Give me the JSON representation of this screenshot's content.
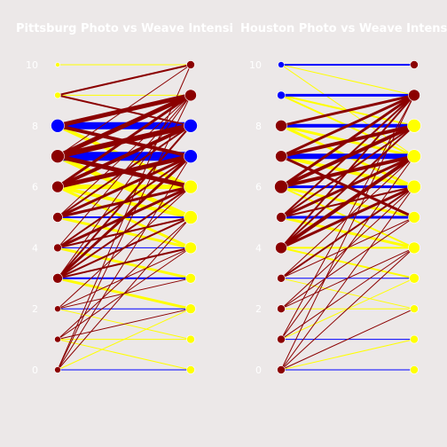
{
  "chart_data": [
    {
      "type": "line",
      "title": "Pittsburg Photo vs Weave Intensi",
      "ylim": [
        0,
        10
      ],
      "yticks": [
        0,
        2,
        4,
        6,
        8,
        10
      ],
      "grid": false,
      "colors": {
        "photo": "#0000ff",
        "weave": "#8b0000",
        "mixed": "#ffff00",
        "background": "#ece8e8"
      },
      "levels": [
        {
          "y": 10,
          "size": 1,
          "pointColor": "yellow",
          "flow": "mixed",
          "width": 1
        },
        {
          "y": 9,
          "size": 2,
          "pointColor": "yellow",
          "flow": "mixed",
          "width": 1
        },
        {
          "y": 8,
          "size": 6,
          "pointColor": "blue",
          "flow": "blue",
          "width": 8
        },
        {
          "y": 7,
          "size": 6,
          "pointColor": "darkred",
          "flow": "blue",
          "width": 10
        },
        {
          "y": 6,
          "size": 5,
          "pointColor": "darkred",
          "flow": "mixed",
          "width": 5
        },
        {
          "y": 5,
          "size": 4,
          "pointColor": "darkred",
          "flow": "blue",
          "width": 2
        },
        {
          "y": 4,
          "size": 3,
          "pointColor": "darkred",
          "flow": "blue",
          "width": 1
        },
        {
          "y": 3,
          "size": 4,
          "pointColor": "darkred",
          "flow": "blue",
          "width": 2
        },
        {
          "y": 2,
          "size": 2,
          "pointColor": "darkred",
          "flow": "blue",
          "width": 1
        },
        {
          "y": 1,
          "size": 2,
          "pointColor": "darkred",
          "flow": "mixed",
          "width": 1
        },
        {
          "y": 0,
          "size": 2,
          "pointColor": "darkred",
          "flow": "blue",
          "width": 1
        }
      ],
      "crosses": [
        {
          "from": 9,
          "to": 10,
          "color": "darkred",
          "width": 2
        },
        {
          "from": 9,
          "to": 8,
          "color": "darkred",
          "width": 2
        },
        {
          "from": 8,
          "to": 9,
          "color": "darkred",
          "width": 5
        },
        {
          "from": 8,
          "to": 7,
          "color": "darkred",
          "width": 4
        },
        {
          "from": 8,
          "to": 6,
          "color": "yellow",
          "width": 4
        },
        {
          "from": 7,
          "to": 9,
          "color": "darkred",
          "width": 5
        },
        {
          "from": 7,
          "to": 8,
          "color": "darkred",
          "width": 6
        },
        {
          "from": 7,
          "to": 6,
          "color": "darkred",
          "width": 5
        },
        {
          "from": 7,
          "to": 5,
          "color": "yellow",
          "width": 5
        },
        {
          "from": 7,
          "to": 10,
          "color": "darkred",
          "width": 1
        },
        {
          "from": 6,
          "to": 8,
          "color": "darkred",
          "width": 4
        },
        {
          "from": 6,
          "to": 7,
          "color": "darkred",
          "width": 5
        },
        {
          "from": 6,
          "to": 5,
          "color": "yellow",
          "width": 4
        },
        {
          "from": 6,
          "to": 9,
          "color": "darkred",
          "width": 3
        },
        {
          "from": 6,
          "to": 4,
          "color": "yellow",
          "width": 3
        },
        {
          "from": 5,
          "to": 7,
          "color": "darkred",
          "width": 3
        },
        {
          "from": 5,
          "to": 6,
          "color": "darkred",
          "width": 3
        },
        {
          "from": 5,
          "to": 8,
          "color": "darkred",
          "width": 2
        },
        {
          "from": 5,
          "to": 4,
          "color": "yellow",
          "width": 3
        },
        {
          "from": 5,
          "to": 9,
          "color": "darkred",
          "width": 1
        },
        {
          "from": 4,
          "to": 6,
          "color": "darkred",
          "width": 3
        },
        {
          "from": 4,
          "to": 7,
          "color": "darkred",
          "width": 2
        },
        {
          "from": 4,
          "to": 5,
          "color": "darkred",
          "width": 2
        },
        {
          "from": 4,
          "to": 3,
          "color": "yellow",
          "width": 3
        },
        {
          "from": 4,
          "to": 9,
          "color": "darkred",
          "width": 1
        },
        {
          "from": 3,
          "to": 7,
          "color": "darkred",
          "width": 3
        },
        {
          "from": 3,
          "to": 6,
          "color": "darkred",
          "width": 2
        },
        {
          "from": 3,
          "to": 8,
          "color": "darkred",
          "width": 2
        },
        {
          "from": 3,
          "to": 5,
          "color": "darkred",
          "width": 2
        },
        {
          "from": 3,
          "to": 4,
          "color": "darkred",
          "width": 2
        },
        {
          "from": 3,
          "to": 9,
          "color": "darkred",
          "width": 1
        },
        {
          "from": 3,
          "to": 2,
          "color": "yellow",
          "width": 3
        },
        {
          "from": 2,
          "to": 6,
          "color": "darkred",
          "width": 1
        },
        {
          "from": 2,
          "to": 4,
          "color": "darkred",
          "width": 1
        },
        {
          "from": 2,
          "to": 3,
          "color": "darkred",
          "width": 1
        },
        {
          "from": 2,
          "to": 1,
          "color": "yellow",
          "width": 1
        },
        {
          "from": 1,
          "to": 4,
          "color": "darkred",
          "width": 1
        },
        {
          "from": 1,
          "to": 2,
          "color": "darkred",
          "width": 1
        },
        {
          "from": 1,
          "to": 5,
          "color": "darkred",
          "width": 1
        },
        {
          "from": 0,
          "to": 10,
          "color": "darkred",
          "width": 1
        },
        {
          "from": 0,
          "to": 9,
          "color": "darkred",
          "width": 1
        },
        {
          "from": 0,
          "to": 7,
          "color": "darkred",
          "width": 1
        },
        {
          "from": 0,
          "to": 5,
          "color": "darkred",
          "width": 1
        },
        {
          "from": 0,
          "to": 2,
          "color": "yellow",
          "width": 1
        },
        {
          "from": 1,
          "to": 0,
          "color": "yellow",
          "width": 1
        }
      ],
      "right_points": [
        {
          "y": 10,
          "size": 3,
          "color": "darkred"
        },
        {
          "y": 9,
          "size": 5,
          "color": "darkred"
        },
        {
          "y": 8,
          "size": 6,
          "color": "blue"
        },
        {
          "y": 7,
          "size": 6,
          "color": "blue"
        },
        {
          "y": 6,
          "size": 6,
          "color": "yellow"
        },
        {
          "y": 5,
          "size": 6,
          "color": "yellow"
        },
        {
          "y": 4,
          "size": 5,
          "color": "yellow"
        },
        {
          "y": 3,
          "size": 4,
          "color": "yellow"
        },
        {
          "y": 2,
          "size": 4,
          "color": "yellow"
        },
        {
          "y": 1,
          "size": 3,
          "color": "yellow"
        },
        {
          "y": 0,
          "size": 3,
          "color": "yellow"
        }
      ]
    },
    {
      "type": "line",
      "title": "Houston Photo vs Weave Intensit",
      "ylim": [
        0,
        10
      ],
      "yticks": [
        0,
        2,
        4,
        6,
        8,
        10
      ],
      "grid": false,
      "colors": {
        "photo": "#0000ff",
        "weave": "#8b0000",
        "mixed": "#ffff00",
        "background": "#ece8e8"
      },
      "levels": [
        {
          "y": 10,
          "size": 2,
          "pointColor": "blue",
          "flow": "blue",
          "width": 2
        },
        {
          "y": 9,
          "size": 3,
          "pointColor": "blue",
          "flow": "blue",
          "width": 3
        },
        {
          "y": 8,
          "size": 5,
          "pointColor": "darkred",
          "flow": "blue",
          "width": 4
        },
        {
          "y": 7,
          "size": 5,
          "pointColor": "darkred",
          "flow": "blue",
          "width": 6
        },
        {
          "y": 6,
          "size": 6,
          "pointColor": "darkred",
          "flow": "blue",
          "width": 3
        },
        {
          "y": 5,
          "size": 4,
          "pointColor": "darkred",
          "flow": "blue",
          "width": 3
        },
        {
          "y": 4,
          "size": 5,
          "pointColor": "darkred",
          "flow": "mixed",
          "width": 2
        },
        {
          "y": 3,
          "size": 3,
          "pointColor": "darkred",
          "flow": "blue",
          "width": 1
        },
        {
          "y": 2,
          "size": 3,
          "pointColor": "darkred",
          "flow": "mixed",
          "width": 1
        },
        {
          "y": 1,
          "size": 3,
          "pointColor": "darkred",
          "flow": "blue",
          "width": 1
        },
        {
          "y": 0,
          "size": 3,
          "pointColor": "darkred",
          "flow": "blue",
          "width": 1
        }
      ],
      "crosses": [
        {
          "from": 10,
          "to": 9,
          "color": "yellow",
          "width": 1
        },
        {
          "from": 10,
          "to": 7,
          "color": "yellow",
          "width": 1
        },
        {
          "from": 9,
          "to": 8,
          "color": "yellow",
          "width": 2
        },
        {
          "from": 9,
          "to": 7,
          "color": "yellow",
          "width": 2
        },
        {
          "from": 8,
          "to": 9,
          "color": "darkred",
          "width": 3
        },
        {
          "from": 8,
          "to": 7,
          "color": "yellow",
          "width": 3
        },
        {
          "from": 8,
          "to": 6,
          "color": "yellow",
          "width": 3
        },
        {
          "from": 7,
          "to": 9,
          "color": "darkred",
          "width": 3
        },
        {
          "from": 7,
          "to": 8,
          "color": "darkred",
          "width": 4
        },
        {
          "from": 7,
          "to": 6,
          "color": "yellow",
          "width": 4
        },
        {
          "from": 7,
          "to": 5,
          "color": "darkred",
          "width": 3
        },
        {
          "from": 6,
          "to": 8,
          "color": "darkred",
          "width": 4
        },
        {
          "from": 6,
          "to": 7,
          "color": "darkred",
          "width": 4
        },
        {
          "from": 6,
          "to": 9,
          "color": "darkred",
          "width": 3
        },
        {
          "from": 6,
          "to": 5,
          "color": "yellow",
          "width": 3
        },
        {
          "from": 6,
          "to": 4,
          "color": "yellow",
          "width": 2
        },
        {
          "from": 5,
          "to": 7,
          "color": "darkred",
          "width": 3
        },
        {
          "from": 5,
          "to": 8,
          "color": "darkred",
          "width": 2
        },
        {
          "from": 5,
          "to": 6,
          "color": "darkred",
          "width": 2
        },
        {
          "from": 5,
          "to": 4,
          "color": "yellow",
          "width": 3
        },
        {
          "from": 5,
          "to": 9,
          "color": "darkred",
          "width": 2
        },
        {
          "from": 4,
          "to": 7,
          "color": "darkred",
          "width": 4
        },
        {
          "from": 4,
          "to": 6,
          "color": "darkred",
          "width": 3
        },
        {
          "from": 4,
          "to": 8,
          "color": "darkred",
          "width": 2
        },
        {
          "from": 4,
          "to": 9,
          "color": "darkred",
          "width": 2
        },
        {
          "from": 4,
          "to": 3,
          "color": "yellow",
          "width": 2
        },
        {
          "from": 3,
          "to": 6,
          "color": "darkred",
          "width": 2
        },
        {
          "from": 3,
          "to": 5,
          "color": "darkred",
          "width": 1
        },
        {
          "from": 3,
          "to": 7,
          "color": "darkred",
          "width": 1
        },
        {
          "from": 3,
          "to": 2,
          "color": "yellow",
          "width": 1
        },
        {
          "from": 2,
          "to": 5,
          "color": "darkred",
          "width": 1
        },
        {
          "from": 2,
          "to": 6,
          "color": "darkred",
          "width": 1
        },
        {
          "from": 2,
          "to": 4,
          "color": "darkred",
          "width": 1
        },
        {
          "from": 1,
          "to": 9,
          "color": "darkred",
          "width": 1
        },
        {
          "from": 1,
          "to": 7,
          "color": "darkred",
          "width": 1
        },
        {
          "from": 1,
          "to": 4,
          "color": "darkred",
          "width": 1
        },
        {
          "from": 1,
          "to": 3,
          "color": "yellow",
          "width": 1
        },
        {
          "from": 0,
          "to": 9,
          "color": "darkred",
          "width": 1
        },
        {
          "from": 0,
          "to": 6,
          "color": "darkred",
          "width": 1
        },
        {
          "from": 0,
          "to": 4,
          "color": "darkred",
          "width": 1
        },
        {
          "from": 0,
          "to": 2,
          "color": "darkred",
          "width": 1
        },
        {
          "from": 0,
          "to": 1,
          "color": "yellow",
          "width": 1
        }
      ],
      "right_points": [
        {
          "y": 10,
          "size": 3,
          "color": "darkred"
        },
        {
          "y": 9,
          "size": 5,
          "color": "darkred"
        },
        {
          "y": 8,
          "size": 6,
          "color": "yellow"
        },
        {
          "y": 7,
          "size": 6,
          "color": "yellow"
        },
        {
          "y": 6,
          "size": 6,
          "color": "yellow"
        },
        {
          "y": 5,
          "size": 5,
          "color": "yellow"
        },
        {
          "y": 4,
          "size": 5,
          "color": "yellow"
        },
        {
          "y": 3,
          "size": 4,
          "color": "yellow"
        },
        {
          "y": 2,
          "size": 3,
          "color": "yellow"
        },
        {
          "y": 1,
          "size": 3,
          "color": "yellow"
        },
        {
          "y": 0,
          "size": 3,
          "color": "yellow"
        }
      ]
    }
  ]
}
